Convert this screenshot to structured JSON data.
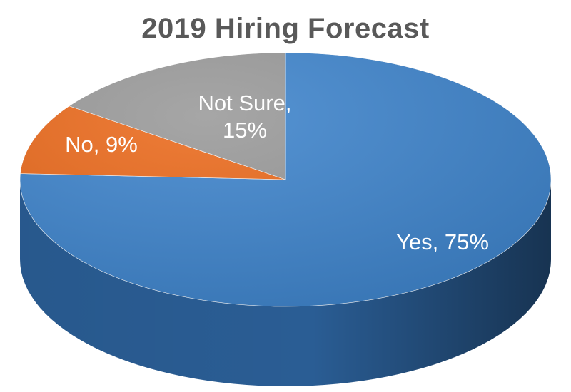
{
  "chart_data": {
    "type": "pie",
    "title": "2019 Hiring Forecast",
    "slices": [
      {
        "name": "Yes",
        "value": 75,
        "label_lines": [
          "Yes, 75%"
        ],
        "color": "#3f85cd",
        "side_color": "#2a5d94"
      },
      {
        "name": "No",
        "value": 9,
        "label_lines": [
          "No, 9%"
        ],
        "color": "#ec6b1d",
        "side_color": "#a84a11"
      },
      {
        "name": "Not Sure",
        "value": 15,
        "label_lines": [
          "Not Sure,",
          "15%"
        ],
        "color": "#9a9a9a",
        "side_color": "#6e6e6e"
      }
    ],
    "start_angle_deg": -90,
    "direction": "clockwise",
    "style": "3d"
  }
}
